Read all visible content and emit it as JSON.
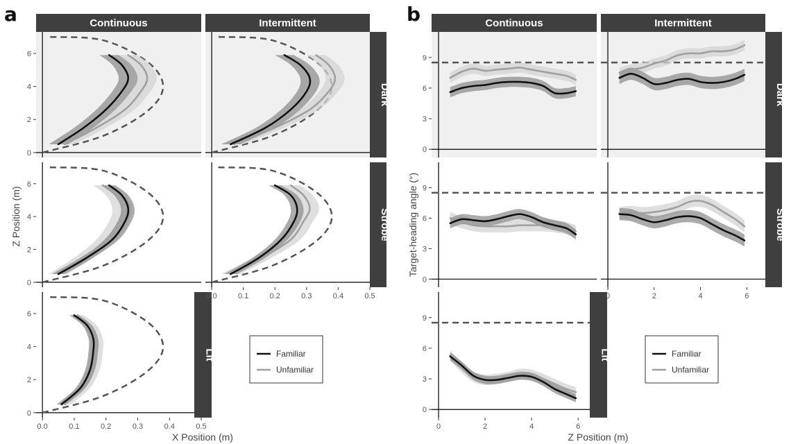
{
  "figure": {
    "panel_a_letter": "a",
    "panel_b_letter": "b",
    "legend": {
      "items": [
        "Familiar",
        "Unfamiliar"
      ]
    },
    "colors": {
      "familiar": "#111111",
      "unfamiliar": "#a0a0a0",
      "familiar_band": "#8f8f8f",
      "unfamiliar_band": "#d4d4d4",
      "panel_bg": "#f0f0f0",
      "strip_bg": "#3f3f3f",
      "reference": "#555555"
    }
  },
  "chart_data": [
    {
      "id": "a",
      "type": "line",
      "xlabel": "X Position (m)",
      "ylabel": "Z Position (m)",
      "xlim": [
        -0.02,
        0.5
      ],
      "ylim": [
        -0.3,
        7.3
      ],
      "xticks": [
        "0.0",
        "0.1",
        "0.2",
        "0.3",
        "0.4",
        "0.5"
      ],
      "yticks": [
        "0",
        "2",
        "4",
        "6"
      ],
      "col_labels": [
        "Continuous",
        "Intermittent"
      ],
      "row_labels": [
        "Dark",
        "Strobe",
        "Lit"
      ],
      "series_names": [
        "Familiar",
        "Unfamiliar"
      ],
      "reference": {
        "style": "dashed",
        "x": [
          0,
          0.19,
          0.33,
          0.38,
          0.33,
          0.19,
          0.02
        ],
        "y": [
          0,
          1,
          2.5,
          4,
          5.5,
          6.8,
          7
        ]
      },
      "panels": [
        {
          "row": "Dark",
          "col": "Continuous",
          "shaded": true,
          "series": [
            {
              "name": "Familiar",
              "x": [
                0.05,
                0.13,
                0.2,
                0.25,
                0.27,
                0.25,
                0.21
              ],
              "y": [
                0.5,
                1.5,
                2.6,
                3.7,
                4.5,
                5.3,
                5.9
              ],
              "band": 0.03
            },
            {
              "name": "Unfamiliar",
              "x": [
                0.07,
                0.17,
                0.26,
                0.31,
                0.33,
                0.31,
                0.27
              ],
              "y": [
                0.5,
                1.5,
                2.6,
                3.7,
                4.5,
                5.3,
                5.9
              ],
              "band": 0.03
            }
          ]
        },
        {
          "row": "Dark",
          "col": "Intermittent",
          "shaded": true,
          "series": [
            {
              "name": "Familiar",
              "x": [
                0.06,
                0.17,
                0.25,
                0.3,
                0.31,
                0.28,
                0.23
              ],
              "y": [
                0.5,
                1.5,
                2.6,
                3.7,
                4.5,
                5.3,
                5.9
              ],
              "band": 0.03
            },
            {
              "name": "Unfamiliar",
              "x": [
                0.07,
                0.2,
                0.31,
                0.37,
                0.39,
                0.37,
                0.33
              ],
              "y": [
                0.5,
                1.5,
                2.6,
                3.7,
                4.5,
                5.3,
                5.9
              ],
              "band": 0.03
            }
          ]
        },
        {
          "row": "Strobe",
          "col": "Continuous",
          "shaded": false,
          "series": [
            {
              "name": "Familiar",
              "x": [
                0.05,
                0.14,
                0.22,
                0.26,
                0.27,
                0.25,
                0.21
              ],
              "y": [
                0.5,
                1.5,
                2.6,
                3.7,
                4.5,
                5.3,
                5.9
              ],
              "band": 0.02
            },
            {
              "name": "Unfamiliar",
              "x": [
                0.05,
                0.13,
                0.2,
                0.24,
                0.25,
                0.23,
                0.19
              ],
              "y": [
                0.5,
                1.5,
                2.6,
                3.7,
                4.5,
                5.3,
                5.9
              ],
              "band": 0.03
            }
          ]
        },
        {
          "row": "Strobe",
          "col": "Intermittent",
          "shaded": false,
          "series": [
            {
              "name": "Familiar",
              "x": [
                0.06,
                0.15,
                0.22,
                0.26,
                0.27,
                0.25,
                0.2
              ],
              "y": [
                0.5,
                1.5,
                2.6,
                3.7,
                4.5,
                5.3,
                5.9
              ],
              "band": 0.02
            },
            {
              "name": "Unfamiliar",
              "x": [
                0.06,
                0.16,
                0.25,
                0.29,
                0.31,
                0.29,
                0.25
              ],
              "y": [
                0.5,
                1.5,
                2.6,
                3.7,
                4.5,
                5.3,
                5.9
              ],
              "band": 0.03
            }
          ]
        },
        {
          "row": "Lit",
          "col": "Continuous",
          "shaded": false,
          "series": [
            {
              "name": "Familiar",
              "x": [
                0.06,
                0.12,
                0.15,
                0.16,
                0.16,
                0.14,
                0.1
              ],
              "y": [
                0.5,
                1.5,
                2.6,
                3.7,
                4.5,
                5.3,
                5.9
              ],
              "band": 0.015
            },
            {
              "name": "Unfamiliar",
              "x": [
                0.07,
                0.13,
                0.16,
                0.17,
                0.17,
                0.15,
                0.11
              ],
              "y": [
                0.5,
                1.5,
                2.6,
                3.7,
                4.5,
                5.3,
                5.9
              ],
              "band": 0.02
            }
          ]
        }
      ]
    },
    {
      "id": "b",
      "type": "line",
      "xlabel": "Z Position (m)",
      "ylabel": "Target-heading angle (°)",
      "xlim": [
        -0.3,
        6.8
      ],
      "ylim": [
        -0.8,
        11.5
      ],
      "xticks": [
        "0",
        "2",
        "4",
        "6"
      ],
      "yticks": [
        "0",
        "3",
        "6",
        "9"
      ],
      "col_labels": [
        "Continuous",
        "Intermittent"
      ],
      "row_labels": [
        "Dark",
        "Strobe",
        "Lit"
      ],
      "series_names": [
        "Familiar",
        "Unfamiliar"
      ],
      "reference": {
        "style": "dashed",
        "y": 8.5
      },
      "panels": [
        {
          "row": "Dark",
          "col": "Continuous",
          "shaded": true,
          "series": [
            {
              "name": "Familiar",
              "x": [
                0.5,
                1,
                1.5,
                2,
                2.5,
                3,
                3.5,
                4,
                4.5,
                5,
                5.5,
                5.9
              ],
              "y": [
                5.6,
                6,
                6.2,
                6.3,
                6.5,
                6.6,
                6.6,
                6.5,
                6.2,
                5.5,
                5.5,
                5.7
              ],
              "band": 0.5
            },
            {
              "name": "Unfamiliar",
              "x": [
                0.5,
                1,
                1.5,
                2,
                2.5,
                3,
                3.5,
                4,
                4.5,
                5,
                5.5,
                5.9
              ],
              "y": [
                7,
                7.6,
                7.9,
                7.7,
                7.8,
                7.9,
                8,
                7.8,
                7.6,
                7.4,
                7.2,
                6.8
              ],
              "band": 0.5
            }
          ]
        },
        {
          "row": "Dark",
          "col": "Intermittent",
          "shaded": true,
          "series": [
            {
              "name": "Familiar",
              "x": [
                0.5,
                1,
                1.5,
                2,
                2.5,
                3,
                3.5,
                4,
                4.5,
                5,
                5.5,
                5.9
              ],
              "y": [
                7,
                7.4,
                7,
                6.4,
                6.5,
                6.8,
                6.9,
                6.6,
                6.5,
                6.6,
                6.9,
                7.3
              ],
              "band": 0.6
            },
            {
              "name": "Unfamiliar",
              "x": [
                0.5,
                1,
                1.5,
                2,
                2.5,
                3,
                3.5,
                4,
                4.5,
                5,
                5.5,
                5.9
              ],
              "y": [
                7.5,
                7.8,
                8,
                8.4,
                8.7,
                9.2,
                9.4,
                9.4,
                9.6,
                9.6,
                9.8,
                10.2
              ],
              "band": 0.5
            }
          ]
        },
        {
          "row": "Strobe",
          "col": "Continuous",
          "shaded": false,
          "series": [
            {
              "name": "Familiar",
              "x": [
                0.5,
                1,
                1.5,
                2,
                2.5,
                3,
                3.5,
                4,
                4.5,
                5,
                5.5,
                5.9
              ],
              "y": [
                5.5,
                5.9,
                5.8,
                5.7,
                5.9,
                6.2,
                6.4,
                6.1,
                5.6,
                5.3,
                5,
                4.4
              ],
              "band": 0.5
            },
            {
              "name": "Unfamiliar",
              "x": [
                0.5,
                1,
                1.5,
                2,
                2.5,
                3,
                3.5,
                4,
                4.5,
                5,
                5.5,
                5.9
              ],
              "y": [
                6,
                5.6,
                5.3,
                5.2,
                5.2,
                5.2,
                5.3,
                5.3,
                5.3,
                5.2,
                5,
                4.7
              ],
              "band": 0.6
            }
          ]
        },
        {
          "row": "Strobe",
          "col": "Intermittent",
          "shaded": false,
          "series": [
            {
              "name": "Familiar",
              "x": [
                0.5,
                1,
                1.5,
                2,
                2.5,
                3,
                3.5,
                4,
                4.5,
                5,
                5.5,
                5.9
              ],
              "y": [
                6.4,
                6.3,
                5.9,
                5.6,
                5.8,
                6.1,
                6.2,
                6,
                5.4,
                4.8,
                4.3,
                3.8
              ],
              "band": 0.6
            },
            {
              "name": "Unfamiliar",
              "x": [
                0.5,
                1,
                1.5,
                2,
                2.5,
                3,
                3.5,
                4,
                4.5,
                5,
                5.5,
                5.9
              ],
              "y": [
                6.5,
                6.6,
                6.5,
                6.6,
                6.8,
                7.1,
                7.6,
                7.7,
                7.3,
                6.6,
                5.9,
                5.2
              ],
              "band": 0.6
            }
          ]
        },
        {
          "row": "Lit",
          "col": "Continuous",
          "shaded": false,
          "series": [
            {
              "name": "Familiar",
              "x": [
                0.5,
                1,
                1.5,
                2,
                2.5,
                3,
                3.5,
                4,
                4.5,
                5,
                5.5,
                5.9
              ],
              "y": [
                5.2,
                4.3,
                3.3,
                2.9,
                2.9,
                3.1,
                3.3,
                3.2,
                2.7,
                2,
                1.5,
                1.1
              ],
              "band": 0.4
            },
            {
              "name": "Unfamiliar",
              "x": [
                0.5,
                1,
                1.5,
                2,
                2.5,
                3,
                3.5,
                4,
                4.5,
                5,
                5.5,
                5.9
              ],
              "y": [
                5.3,
                4.1,
                3.2,
                2.9,
                3,
                3.2,
                3.5,
                3.4,
                3,
                2.5,
                2,
                1.7
              ],
              "band": 0.5
            }
          ]
        }
      ]
    }
  ]
}
